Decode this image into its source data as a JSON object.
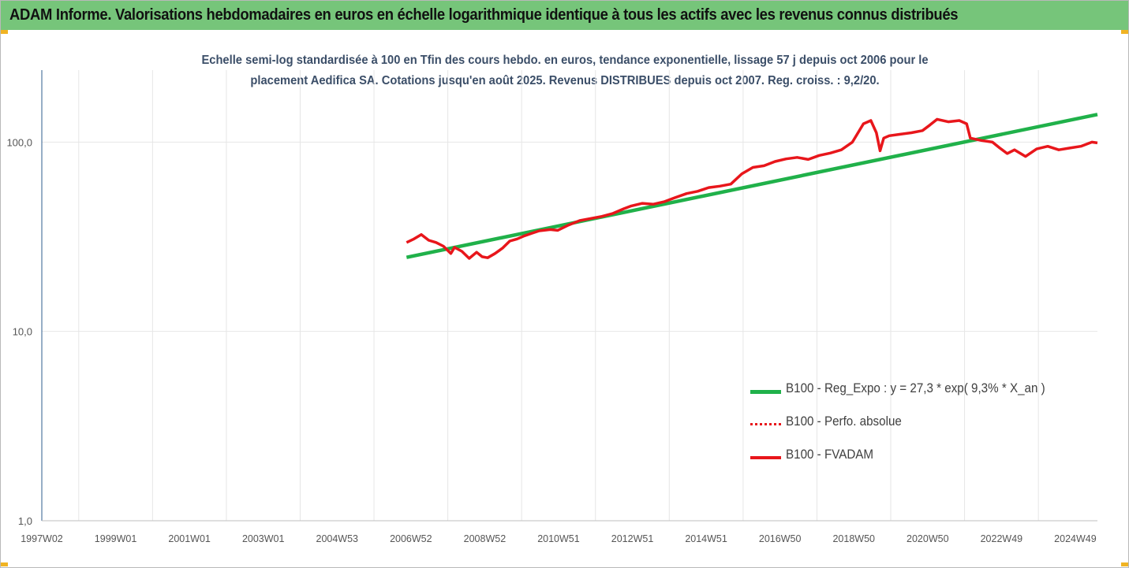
{
  "header": {
    "title": "ADAM Informe. Valorisations hebdomadaires en euros en échelle logarithmique identique à tous les actifs avec les revenus connus distribués"
  },
  "colors": {
    "header_bg": "#76c57a",
    "trend_green": "#20b14a",
    "price_red": "#e8161b",
    "grid": "#e6e6e6",
    "subtitle": "#3b4e68"
  },
  "chart_data": {
    "type": "line",
    "title_lines": [
      "Echelle semi-log standardisée à 100 en Tfin des cours hebdo. en euros, tendance exponentielle, lissage 57 j depuis oct 2006 pour le",
      "placement Aedifica SA. Cotations jusqu'en août 2025. Revenus DISTRIBUES depuis oct 2007. Reg. croiss. : 9,2/20."
    ],
    "x_scale": "weekly date categories",
    "x_tick_labels": [
      "1997W02",
      "1999W01",
      "2001W01",
      "2003W01",
      "2004W53",
      "2006W52",
      "2008W52",
      "2010W51",
      "2012W51",
      "2014W51",
      "2016W50",
      "2018W50",
      "2020W50",
      "2022W49",
      "2024W49"
    ],
    "x_range": [
      1997.0,
      2025.65
    ],
    "y_scale": "log",
    "y_range": [
      1,
      240
    ],
    "y_tick_values": [
      1,
      10,
      100
    ],
    "y_tick_labels": [
      "1,0",
      "10,0",
      "100,0"
    ],
    "grid": true,
    "legend_position": "bottom-right",
    "legend": [
      {
        "label": "B100 - Reg_Expo : y = 27,3 * exp( 9,3% *  X_an )",
        "style": "solid-green"
      },
      {
        "label": "B100 - Perfo. absolue",
        "style": "dotted-red"
      },
      {
        "label": "B100 - FVADAM",
        "style": "solid-red"
      }
    ],
    "series": [
      {
        "name": "B100 - Reg_Expo : y = 27,3 * exp( 9,3% *  X_an )",
        "color": "#20b14a",
        "x": [
          2006.9,
          2025.65
        ],
        "y": [
          24.6,
          140
        ]
      },
      {
        "name": "B100 - Perfo. absolue",
        "color": "#e8161b",
        "x": [],
        "y": []
      },
      {
        "name": "B100 - FVADAM",
        "color": "#e8161b",
        "x": [
          2006.9,
          2007.1,
          2007.3,
          2007.5,
          2007.7,
          2007.9,
          2008.1,
          2008.2,
          2008.4,
          2008.6,
          2008.8,
          2008.95,
          2009.1,
          2009.3,
          2009.5,
          2009.7,
          2009.9,
          2010.1,
          2010.3,
          2010.5,
          2010.8,
          2011.0,
          2011.3,
          2011.6,
          2011.9,
          2012.2,
          2012.5,
          2012.8,
          2013.0,
          2013.3,
          2013.6,
          2013.9,
          2014.2,
          2014.5,
          2014.8,
          2015.1,
          2015.4,
          2015.7,
          2016.0,
          2016.3,
          2016.6,
          2016.9,
          2017.2,
          2017.5,
          2017.8,
          2018.1,
          2018.4,
          2018.7,
          2019.0,
          2019.3,
          2019.5,
          2019.65,
          2019.75,
          2019.85,
          2020.0,
          2020.3,
          2020.6,
          2020.9,
          2021.1,
          2021.3,
          2021.6,
          2021.9,
          2022.1,
          2022.2,
          2022.5,
          2022.8,
          2023.0,
          2023.2,
          2023.4,
          2023.7,
          2024.0,
          2024.3,
          2024.6,
          2024.9,
          2025.2,
          2025.5,
          2025.65
        ],
        "y": [
          29.5,
          30.8,
          32.5,
          30.3,
          29.5,
          28.2,
          25.8,
          27.8,
          26.5,
          24.3,
          26.2,
          24.8,
          24.5,
          25.8,
          27.5,
          30.0,
          30.8,
          32.0,
          33.0,
          34.0,
          34.5,
          34.2,
          36.5,
          38.5,
          39.5,
          40.5,
          42.0,
          44.5,
          46.0,
          47.5,
          47.0,
          48.5,
          51.0,
          53.5,
          55.0,
          57.5,
          58.5,
          60.0,
          68.0,
          73.5,
          75.0,
          79.0,
          81.5,
          83.0,
          81.0,
          85.0,
          87.5,
          91.0,
          100.0,
          125.0,
          130.0,
          112.0,
          90.0,
          105.0,
          108.0,
          110.0,
          112.0,
          115.0,
          123.0,
          132.0,
          128.0,
          130.0,
          125.0,
          105.0,
          102.0,
          100.0,
          93.0,
          87.0,
          91.0,
          84.0,
          92.0,
          95.0,
          91.0,
          93.0,
          95.0,
          100.0,
          99.0
        ]
      }
    ]
  }
}
